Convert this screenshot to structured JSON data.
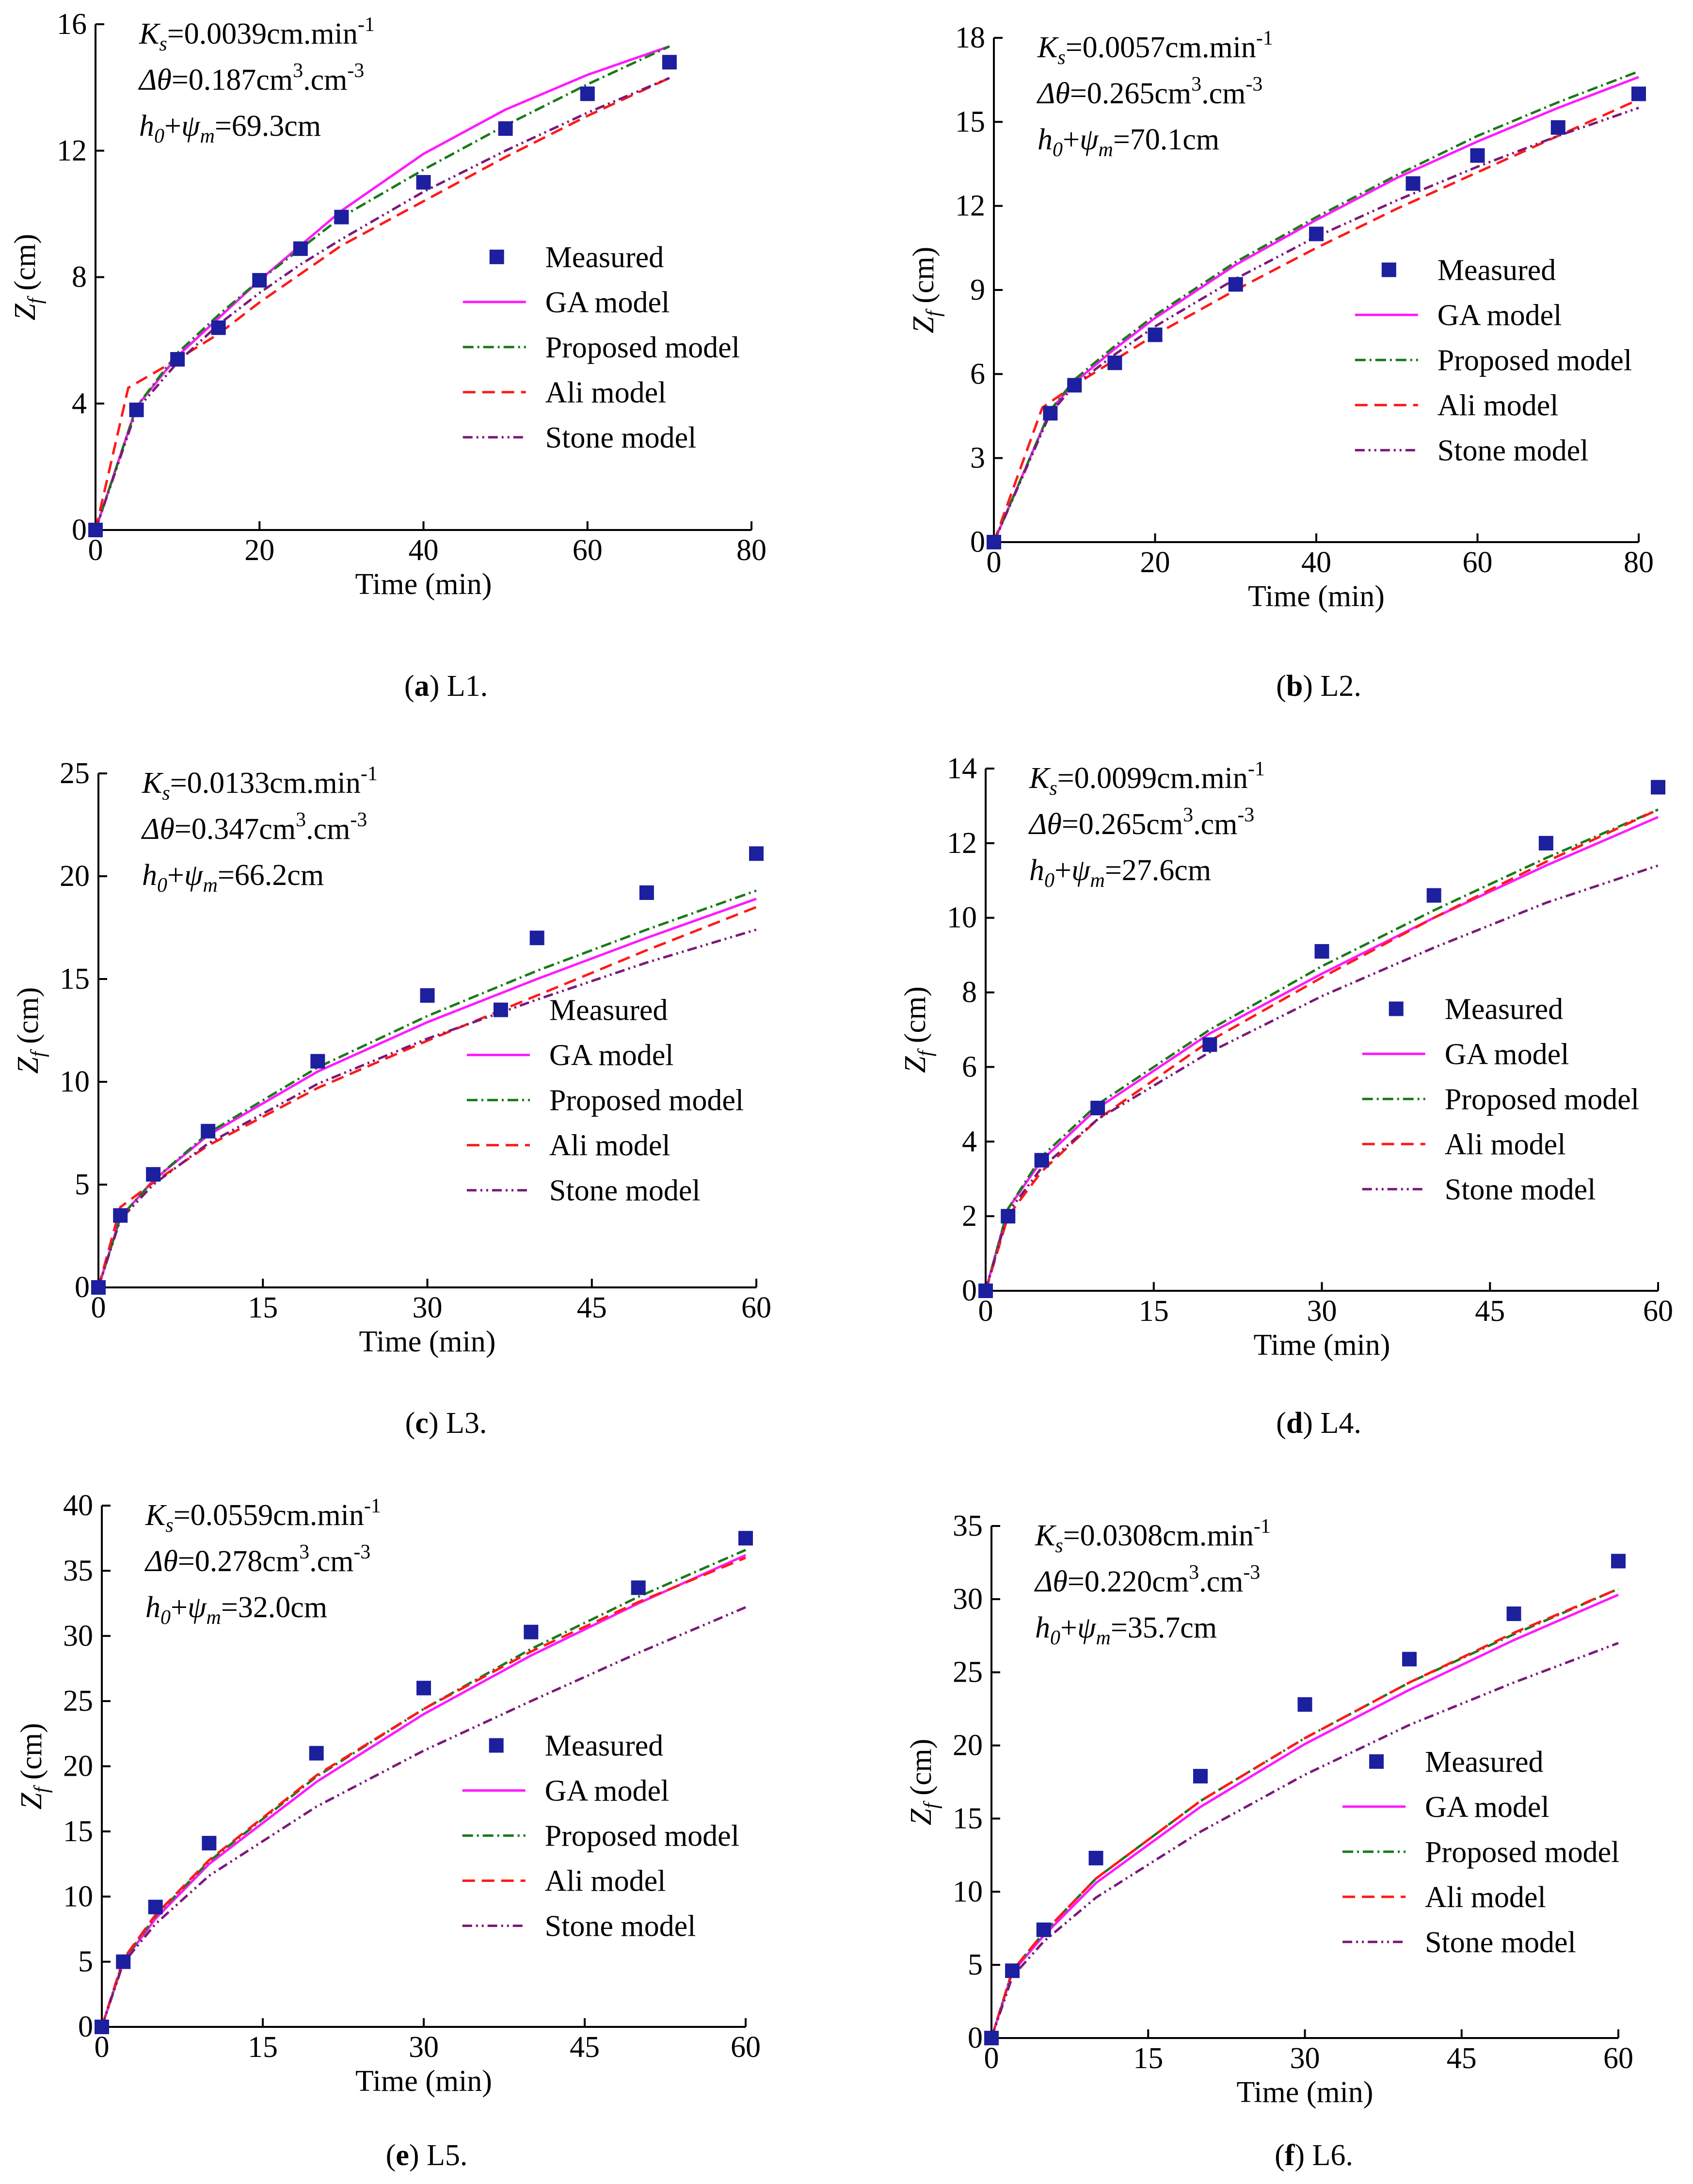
{
  "figure": {
    "legend_labels": [
      "Measured",
      "GA model",
      "Proposed model",
      "Ali model",
      "Stone model"
    ],
    "axis_labels": {
      "x": "Time (min)",
      "y": "Z_f (cm)"
    },
    "colors": {
      "measured": "#1c1f9e",
      "ga": "#ff1aff",
      "proposed": "#1a7a1a",
      "ali": "#ff1a1a",
      "stone": "#7a1a7a"
    }
  },
  "chart_data": [
    {
      "type": "line",
      "id": "L1",
      "caption_letter": "a",
      "caption_text": " L1.",
      "xlabel": "Time (min)",
      "ylabel": "Z_f (cm)",
      "xlim": [
        0,
        80
      ],
      "xticks": [
        0,
        20,
        40,
        60,
        80
      ],
      "ylim": [
        0,
        16
      ],
      "yticks": [
        0,
        4,
        8,
        12,
        16
      ],
      "annotations": {
        "ks": "=0.0039cm.min",
        "dtheta": "=0.187cm",
        "h0psi": "=69.3cm"
      },
      "measured": {
        "x": [
          0,
          5,
          10,
          15,
          20,
          25,
          30,
          40,
          50,
          60,
          70
        ],
        "y": [
          0,
          3.8,
          5.4,
          6.4,
          7.9,
          8.9,
          9.9,
          11.0,
          12.7,
          13.8,
          14.8
        ]
      },
      "series": [
        {
          "name": "GA model",
          "x": [
            0,
            5,
            10,
            15,
            20,
            25,
            30,
            40,
            50,
            60,
            70
          ],
          "y": [
            0,
            3.9,
            5.5,
            6.7,
            7.9,
            9.0,
            10.1,
            11.9,
            13.3,
            14.4,
            15.3
          ]
        },
        {
          "name": "Proposed model",
          "x": [
            0,
            5,
            10,
            15,
            20,
            25,
            30,
            40,
            50,
            60,
            70
          ],
          "y": [
            0,
            3.9,
            5.6,
            6.8,
            7.9,
            8.9,
            9.9,
            11.4,
            12.8,
            14.1,
            15.3
          ]
        },
        {
          "name": "Ali model",
          "x": [
            0,
            4,
            10,
            15,
            20,
            25,
            30,
            40,
            50,
            60,
            70
          ],
          "y": [
            0,
            4.5,
            5.4,
            6.2,
            7.2,
            8.1,
            9.0,
            10.4,
            11.8,
            13.1,
            14.3
          ]
        },
        {
          "name": "Stone model",
          "x": [
            0,
            5,
            10,
            15,
            20,
            25,
            30,
            40,
            50,
            60,
            70
          ],
          "y": [
            0,
            3.8,
            5.3,
            6.5,
            7.5,
            8.4,
            9.2,
            10.7,
            12.0,
            13.2,
            14.3
          ]
        }
      ]
    },
    {
      "type": "line",
      "id": "L2",
      "caption_letter": "b",
      "caption_text": " L2.",
      "xlabel": "Time (min)",
      "ylabel": "Z_f (cm)",
      "xlim": [
        0,
        80
      ],
      "xticks": [
        0,
        20,
        40,
        60,
        80
      ],
      "ylim": [
        0,
        18
      ],
      "yticks": [
        0,
        3,
        6,
        9,
        12,
        15,
        18
      ],
      "annotations": {
        "ks": "=0.0057cm.min",
        "dtheta": "=0.265cm",
        "h0psi": "=70.1cm"
      },
      "measured": {
        "x": [
          0,
          7,
          10,
          15,
          20,
          30,
          40,
          52,
          60,
          70,
          80
        ],
        "y": [
          0,
          4.6,
          5.6,
          6.4,
          7.4,
          9.2,
          11.0,
          12.8,
          13.8,
          14.8,
          16.0
        ]
      },
      "series": [
        {
          "name": "GA model",
          "x": [
            0,
            7,
            10,
            15,
            20,
            30,
            40,
            50,
            60,
            70,
            80
          ],
          "y": [
            0,
            4.7,
            5.7,
            6.9,
            8.0,
            9.9,
            11.5,
            13.0,
            14.3,
            15.5,
            16.6
          ]
        },
        {
          "name": "Proposed model",
          "x": [
            0,
            7,
            10,
            15,
            20,
            30,
            40,
            50,
            60,
            70,
            80
          ],
          "y": [
            0,
            4.7,
            5.8,
            7.0,
            8.1,
            10.0,
            11.6,
            13.1,
            14.5,
            15.7,
            16.8
          ]
        },
        {
          "name": "Ali model",
          "x": [
            0,
            6,
            10,
            15,
            20,
            30,
            40,
            50,
            60,
            70,
            80
          ],
          "y": [
            0,
            4.8,
            5.6,
            6.5,
            7.4,
            9.0,
            10.5,
            11.9,
            13.2,
            14.5,
            15.8
          ]
        },
        {
          "name": "Stone model",
          "x": [
            0,
            7,
            10,
            15,
            20,
            30,
            40,
            50,
            60,
            70,
            80
          ],
          "y": [
            0,
            4.6,
            5.6,
            6.7,
            7.7,
            9.4,
            10.9,
            12.2,
            13.4,
            14.5,
            15.5
          ]
        }
      ]
    },
    {
      "type": "line",
      "id": "L3",
      "caption_letter": "c",
      "caption_text": " L3.",
      "xlabel": "Time (min)",
      "ylabel": "Z_f (cm)",
      "xlim": [
        0,
        60
      ],
      "xticks": [
        0,
        15,
        30,
        45,
        60
      ],
      "ylim": [
        0,
        25
      ],
      "yticks": [
        0,
        5,
        10,
        15,
        20,
        25
      ],
      "annotations": {
        "ks": "=0.0133cm.min",
        "dtheta": "=0.347cm",
        "h0psi": "=66.2cm"
      },
      "measured": {
        "x": [
          0,
          2,
          5,
          10,
          20,
          30,
          40,
          50,
          60
        ],
        "y": [
          0,
          3.5,
          5.5,
          7.6,
          11.0,
          14.2,
          17.0,
          19.2,
          21.1
        ]
      },
      "series": [
        {
          "name": "GA model",
          "x": [
            0,
            2,
            5,
            10,
            20,
            30,
            40,
            50,
            60
          ],
          "y": [
            0,
            3.4,
            5.2,
            7.4,
            10.5,
            12.9,
            15.0,
            17.0,
            18.9
          ]
        },
        {
          "name": "Proposed model",
          "x": [
            0,
            2,
            5,
            10,
            20,
            30,
            40,
            50,
            60
          ],
          "y": [
            0,
            3.4,
            5.2,
            7.5,
            10.7,
            13.2,
            15.4,
            17.4,
            19.3
          ]
        },
        {
          "name": "Ali model",
          "x": [
            0,
            2,
            5,
            10,
            20,
            30,
            40,
            50,
            60
          ],
          "y": [
            0,
            3.9,
            5.1,
            6.9,
            9.7,
            12.0,
            14.2,
            16.4,
            18.5
          ]
        },
        {
          "name": "Stone model",
          "x": [
            0,
            2,
            5,
            10,
            20,
            30,
            40,
            50,
            60
          ],
          "y": [
            0,
            3.3,
            5.0,
            7.0,
            9.9,
            12.1,
            14.0,
            15.8,
            17.4
          ]
        }
      ]
    },
    {
      "type": "line",
      "id": "L4",
      "caption_letter": "d",
      "caption_text": " L4.",
      "xlabel": "Time (min)",
      "ylabel": "Z_f (cm)",
      "xlim": [
        0,
        60
      ],
      "xticks": [
        0,
        15,
        30,
        45,
        60
      ],
      "ylim": [
        0,
        14
      ],
      "yticks": [
        0,
        2,
        4,
        6,
        8,
        10,
        12,
        14
      ],
      "annotations": {
        "ks": "=0.0099cm.min",
        "dtheta": "=0.265cm",
        "h0psi": "=27.6cm"
      },
      "measured": {
        "x": [
          0,
          2,
          5,
          10,
          20,
          30,
          40,
          50,
          60
        ],
        "y": [
          0,
          2.0,
          3.5,
          4.9,
          6.6,
          9.1,
          10.6,
          12.0,
          13.5
        ]
      },
      "series": [
        {
          "name": "GA model",
          "x": [
            0,
            2,
            5,
            10,
            20,
            30,
            40,
            50,
            60
          ],
          "y": [
            0,
            2.2,
            3.5,
            4.9,
            6.9,
            8.5,
            10.0,
            11.4,
            12.7
          ]
        },
        {
          "name": "Proposed model",
          "x": [
            0,
            2,
            5,
            10,
            20,
            30,
            40,
            50,
            60
          ],
          "y": [
            0,
            2.2,
            3.6,
            5.0,
            7.0,
            8.7,
            10.2,
            11.6,
            12.9
          ]
        },
        {
          "name": "Ali model",
          "x": [
            0,
            2,
            5,
            10,
            20,
            30,
            40,
            50,
            60
          ],
          "y": [
            0,
            2.0,
            3.2,
            4.6,
            6.7,
            8.4,
            10.0,
            11.5,
            12.9
          ]
        },
        {
          "name": "Stone model",
          "x": [
            0,
            2,
            5,
            10,
            20,
            30,
            40,
            50,
            60
          ],
          "y": [
            0,
            2.1,
            3.3,
            4.6,
            6.4,
            7.9,
            9.2,
            10.4,
            11.4
          ]
        }
      ]
    },
    {
      "type": "line",
      "id": "L5",
      "caption_letter": "e",
      "caption_text": " L5.",
      "xlabel": "Time (min)",
      "ylabel": "Z_f (cm)",
      "xlim": [
        0,
        60
      ],
      "xticks": [
        0,
        15,
        30,
        45,
        60
      ],
      "ylim": [
        0,
        40
      ],
      "yticks": [
        0,
        5,
        10,
        15,
        20,
        25,
        30,
        35,
        40
      ],
      "annotations": {
        "ks": "=0.0559cm.min",
        "dtheta": "=0.278cm",
        "h0psi": "=32.0cm"
      },
      "measured": {
        "x": [
          0,
          2,
          5,
          10,
          20,
          30,
          40,
          50,
          60
        ],
        "y": [
          0,
          5.0,
          9.2,
          14.1,
          21.0,
          26.0,
          30.3,
          33.7,
          37.5
        ]
      },
      "series": [
        {
          "name": "GA model",
          "x": [
            0,
            2,
            5,
            10,
            20,
            30,
            40,
            50,
            60
          ],
          "y": [
            0,
            5.0,
            8.3,
            12.5,
            18.8,
            24.0,
            28.5,
            32.5,
            36.2
          ]
        },
        {
          "name": "Proposed model",
          "x": [
            0,
            2,
            5,
            10,
            20,
            30,
            40,
            50,
            60
          ],
          "y": [
            0,
            5.1,
            8.5,
            12.7,
            19.2,
            24.4,
            29.0,
            33.0,
            36.6
          ]
        },
        {
          "name": "Ali model",
          "x": [
            0,
            2,
            5,
            10,
            20,
            30,
            40,
            50,
            60
          ],
          "y": [
            0,
            5.2,
            8.6,
            12.8,
            19.3,
            24.4,
            28.8,
            32.6,
            36.0
          ]
        },
        {
          "name": "Stone model",
          "x": [
            0,
            2,
            5,
            10,
            20,
            30,
            40,
            50,
            60
          ],
          "y": [
            0,
            4.9,
            7.9,
            11.6,
            16.9,
            21.2,
            25.0,
            28.7,
            32.2
          ]
        }
      ]
    },
    {
      "type": "line",
      "id": "L6",
      "caption_letter": "f",
      "caption_text": " L6.",
      "xlabel": "Time (min)",
      "ylabel": "Z_f (cm)",
      "xlim": [
        0,
        60
      ],
      "xticks": [
        0,
        15,
        30,
        45,
        60
      ],
      "ylim": [
        0,
        35
      ],
      "yticks": [
        0,
        5,
        10,
        15,
        20,
        25,
        30,
        35
      ],
      "annotations": {
        "ks": "=0.0308cm.min",
        "dtheta": "=0.220cm",
        "h0psi": "=35.7cm"
      },
      "measured": {
        "x": [
          0,
          2,
          5,
          10,
          20,
          30,
          40,
          50,
          60
        ],
        "y": [
          0,
          4.6,
          7.4,
          12.3,
          17.9,
          22.8,
          25.9,
          29.0,
          32.6
        ]
      },
      "series": [
        {
          "name": "GA model",
          "x": [
            0,
            2,
            5,
            10,
            20,
            30,
            40,
            50,
            60
          ],
          "y": [
            0,
            4.5,
            7.0,
            10.6,
            15.8,
            20.1,
            23.8,
            27.2,
            30.3
          ]
        },
        {
          "name": "Proposed model",
          "x": [
            0,
            2,
            5,
            10,
            20,
            30,
            40,
            50,
            60
          ],
          "y": [
            0,
            4.6,
            7.2,
            10.9,
            16.2,
            20.5,
            24.3,
            27.6,
            30.7
          ]
        },
        {
          "name": "Ali model",
          "x": [
            0,
            2,
            5,
            10,
            20,
            30,
            40,
            50,
            60
          ],
          "y": [
            0,
            4.6,
            7.2,
            10.9,
            16.2,
            20.5,
            24.3,
            27.7,
            30.7
          ]
        },
        {
          "name": "Stone model",
          "x": [
            0,
            2,
            5,
            10,
            20,
            30,
            40,
            50,
            60
          ],
          "y": [
            0,
            4.2,
            6.6,
            9.6,
            14.1,
            18.0,
            21.4,
            24.3,
            27.0
          ]
        }
      ]
    }
  ]
}
